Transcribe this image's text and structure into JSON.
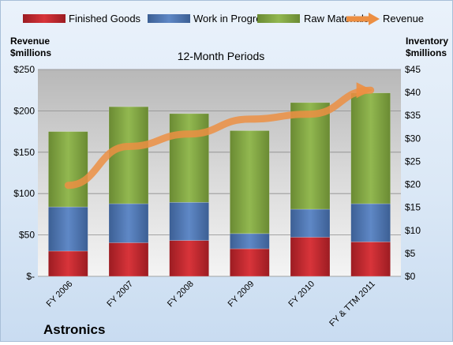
{
  "chart_data": {
    "type": "bar",
    "stacked": true,
    "title": "12-Month Periods",
    "company": "Astronics",
    "categories": [
      "FY 2006",
      "FY 2007",
      "FY 2008",
      "FY 2009",
      "FY 2010",
      "FY & TTM 2011"
    ],
    "left_axis": {
      "label_line1": "Revenue",
      "label_line2": "$millions",
      "range": [
        0,
        250
      ],
      "ticks": [
        0,
        50,
        100,
        150,
        200,
        250
      ],
      "tick_labels": [
        "$-",
        "$50",
        "$100",
        "$150",
        "$200",
        "$250"
      ]
    },
    "right_axis": {
      "label_line1": "Inventory",
      "label_line2": "$millions",
      "range": [
        0,
        45
      ],
      "ticks": [
        0,
        5,
        10,
        15,
        20,
        25,
        30,
        35,
        40,
        45
      ],
      "tick_labels": [
        "$0",
        "$5",
        "$10",
        "$15",
        "$20",
        "$25",
        "$30",
        "$35",
        "$40",
        "$45"
      ]
    },
    "series": [
      {
        "name": "Finished Goods",
        "axis": "right",
        "color": "#c0262d",
        "values": [
          5.5,
          7.3,
          7.8,
          6.0,
          8.5,
          7.5
        ]
      },
      {
        "name": "Work in Progress",
        "axis": "right",
        "color": "#4f78b6",
        "values": [
          9.6,
          8.5,
          8.3,
          3.3,
          6.1,
          8.3
        ]
      },
      {
        "name": "Raw Materials",
        "axis": "right",
        "color": "#86ab43",
        "values": [
          16.4,
          21.1,
          19.3,
          22.4,
          23.2,
          24.1
        ]
      },
      {
        "name": "Revenue",
        "axis": "left",
        "type": "line",
        "color": "#ec8f43",
        "values": [
          110,
          157,
          172,
          190,
          196,
          225
        ]
      }
    ],
    "grid": true,
    "legend_position": "top"
  }
}
